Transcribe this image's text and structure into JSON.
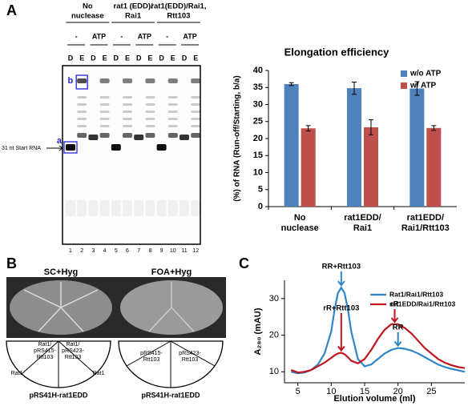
{
  "panels": [
    "A",
    "B",
    "C"
  ],
  "gel": {
    "groups": [
      {
        "label": [
          "No",
          "nuclease"
        ],
        "conditions": [
          "-",
          "ATP"
        ]
      },
      {
        "label": [
          "rat1 (EDD)/",
          "Rai1"
        ],
        "conditions": [
          "-",
          "ATP"
        ]
      },
      {
        "label": [
          "rat1(EDD)/Rai1,",
          "Rtt103"
        ],
        "conditions": [
          "-",
          "ATP"
        ]
      }
    ],
    "lane_types": [
      "D",
      "E",
      "D",
      "E",
      "D",
      "E",
      "D",
      "E",
      "D",
      "E",
      "D",
      "E"
    ],
    "lane_numbers": [
      1,
      2,
      3,
      4,
      5,
      6,
      7,
      8,
      9,
      10,
      11,
      12
    ],
    "band_labels": [
      "b",
      "a"
    ],
    "start_label": "31 nt Start RNA"
  },
  "plates": {
    "media": [
      "SC+Hyg",
      "FOA+Hyg"
    ],
    "left": {
      "sectors": [
        [
          "Rat1/",
          "pRS415-",
          "Rtt103"
        ],
        [
          "Rat1/",
          "pRS423-",
          "Rtt103"
        ],
        [
          "Rat1"
        ],
        [
          "Rat1"
        ]
      ],
      "strain": "pRS41H-rat1EDD"
    },
    "right": {
      "sectors": [
        [
          "pRS415-",
          "Rtt103"
        ],
        [
          "pRS423-",
          "Rtt103"
        ]
      ],
      "strain": "pRS41H-rat1EDD"
    }
  },
  "chart_data": [
    {
      "type": "bar",
      "title": "Elongation efficiency",
      "y_label": "(%) of RNA (Run-off/Starting, b/a)",
      "categories": [
        [
          "No",
          "nuclease"
        ],
        [
          "rat1EDD/",
          "Rai1"
        ],
        [
          "rat1EDD/",
          "Rai1/Rtt103"
        ]
      ],
      "series": [
        {
          "name": "w/o ATP",
          "color": "#4f81bd",
          "values": [
            36,
            34.8,
            34.7
          ],
          "errors": [
            0.4,
            1.8,
            2
          ]
        },
        {
          "name": "w/ ATP",
          "color": "#c0504d",
          "values": [
            23,
            23.3,
            23.1
          ],
          "errors": [
            0.8,
            2.2,
            0.7
          ]
        }
      ],
      "ylim": [
        0,
        40
      ],
      "yticks": [
        0,
        5,
        10,
        15,
        20,
        25,
        30,
        35,
        40
      ]
    },
    {
      "type": "line",
      "x_label": "Elution volume (ml)",
      "y_label": "A₂₈₀ (mAU)",
      "x": [
        4,
        5,
        6,
        7,
        8,
        9,
        10,
        10.5,
        11,
        11.5,
        12,
        12.5,
        13,
        14,
        15,
        16,
        17,
        18,
        19,
        20,
        21,
        22,
        23,
        24,
        25,
        26,
        27,
        28,
        29,
        30
      ],
      "series": [
        {
          "name": "Rat1/Rai1/Rtt103",
          "color": "#2e86c8",
          "values": [
            10,
            9.6,
            9.8,
            10.5,
            12,
            15,
            21,
            27,
            31.5,
            33,
            31.5,
            27,
            21,
            13.5,
            11.5,
            12,
            13.5,
            15,
            16,
            16.5,
            16.3,
            15.8,
            15,
            14,
            13,
            12,
            11.3,
            10.8,
            10.4,
            10
          ]
        },
        {
          "name": "rat1EDD/Rai1/Rtt103",
          "color": "#c0141e",
          "values": [
            10.5,
            9.8,
            10,
            10.5,
            11.5,
            12.5,
            13.8,
            14.5,
            15,
            15.2,
            14.8,
            14,
            13,
            12.3,
            13.5,
            16,
            19,
            21.5,
            23,
            23,
            22,
            20.5,
            18.5,
            16.5,
            15,
            13.5,
            12.5,
            11.8,
            11.3,
            11
          ]
        }
      ],
      "annotations": [
        "RR+Rtt103",
        "rR+Rtt103",
        "rR",
        "RR"
      ],
      "xlim": [
        3,
        30
      ],
      "xticks": [
        5,
        10,
        15,
        20,
        25
      ],
      "ylim": [
        7,
        35
      ],
      "yticks": [
        10,
        20,
        30
      ]
    }
  ]
}
